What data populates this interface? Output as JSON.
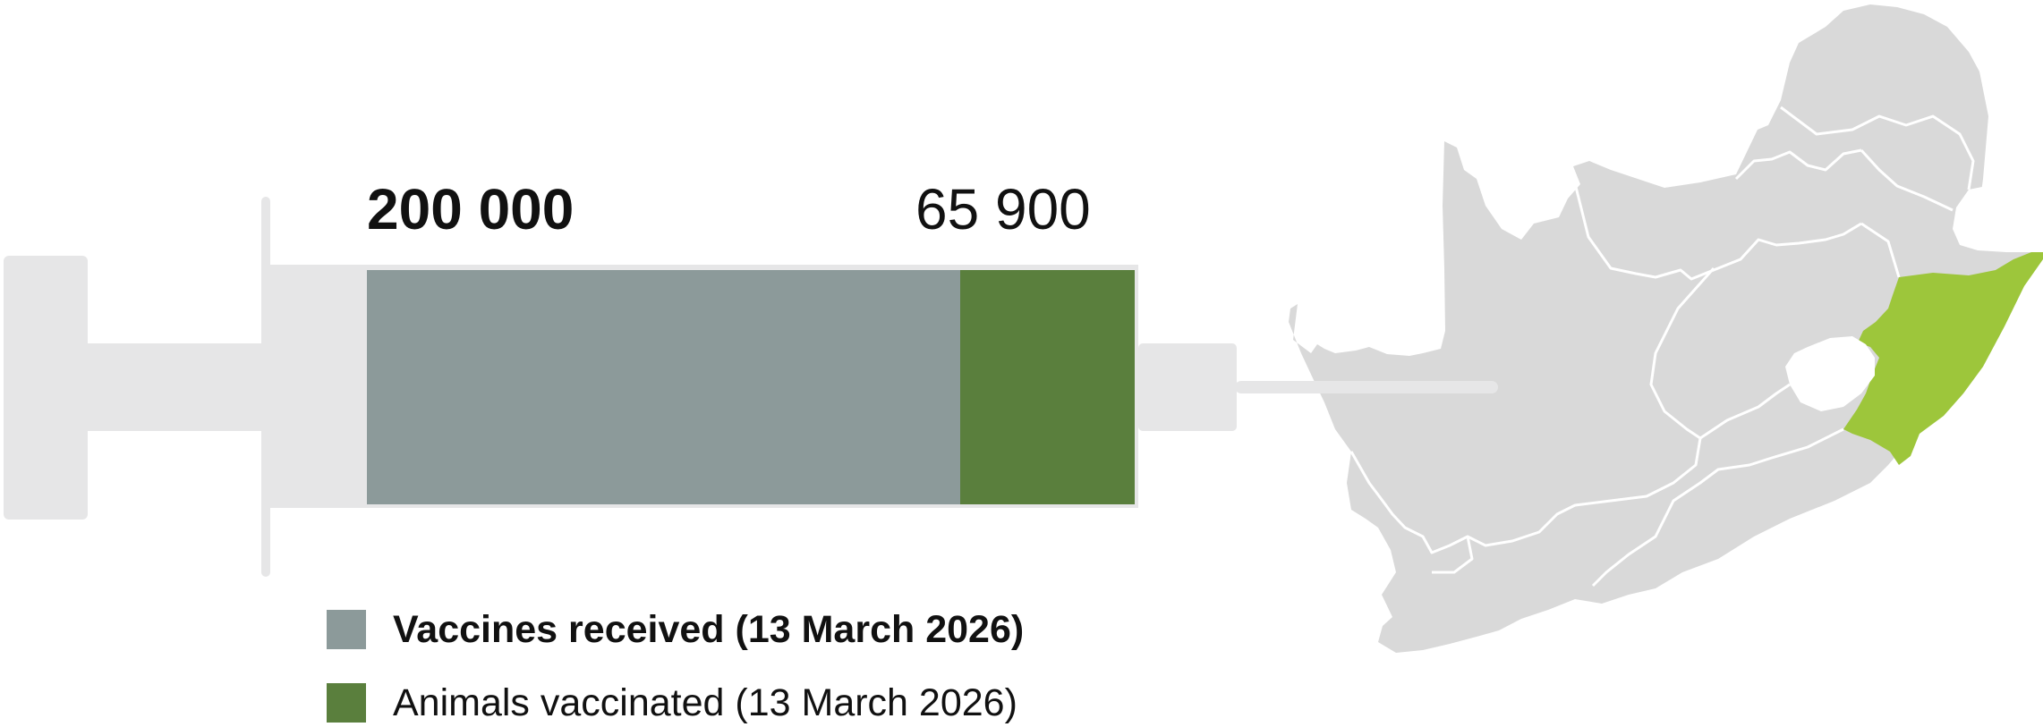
{
  "chart_data": {
    "type": "bar",
    "title": "",
    "xlabel": "",
    "ylabel": "",
    "series": [
      {
        "name": "Vaccines received (13 March 2026)",
        "value": 200000,
        "value_label": "200 000",
        "color": "#8c9a9a"
      },
      {
        "name": "Animals vaccinated  (13 March 2026)",
        "value": 65900,
        "value_label": "65 900",
        "color": "#5a7f3d"
      }
    ],
    "fill_fraction_vaccinated_of_received": 0.3295,
    "legend_placement": "bottom",
    "grid": false
  },
  "map": {
    "subject": "South Africa provinces",
    "highlighted_region": "KwaZulu-Natal",
    "highlight_color": "#9dc63b",
    "base_color": "#d9d9d9",
    "border_color": "#ffffff"
  },
  "colors": {
    "syringe": "#e6e6e7",
    "received": "#8c9a9a",
    "vaccinated": "#5a7f3d"
  }
}
